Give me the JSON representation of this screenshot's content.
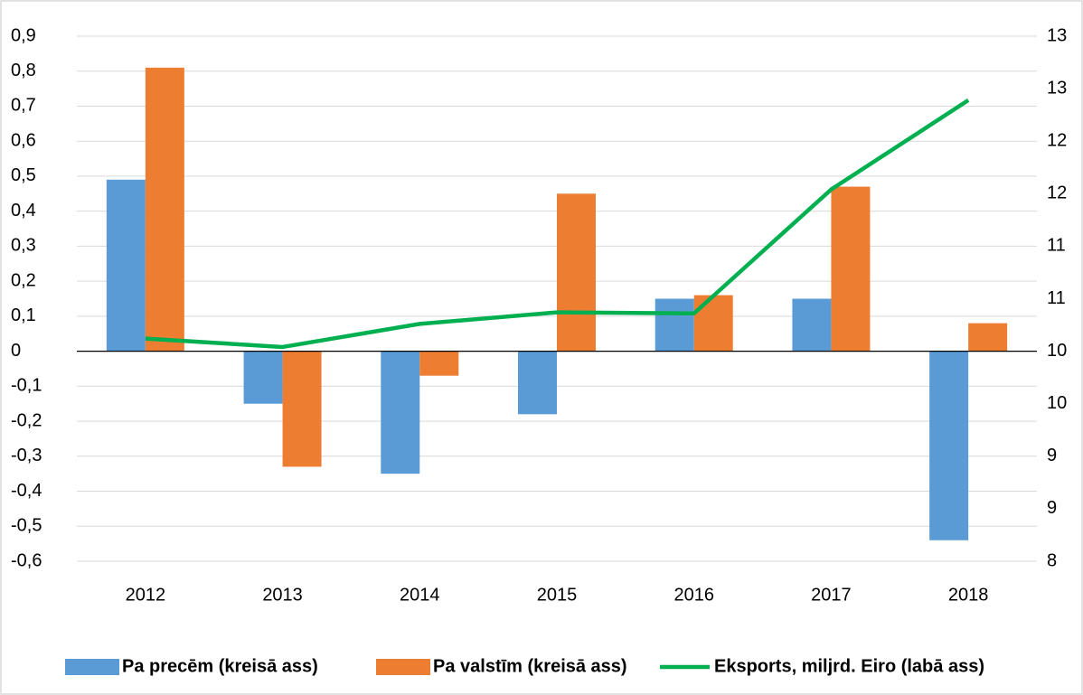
{
  "chart_data": {
    "type": "bar",
    "categories": [
      "2012",
      "2013",
      "2014",
      "2015",
      "2016",
      "2017",
      "2018"
    ],
    "series": [
      {
        "name": "Pa precēm (kreisā ass)",
        "color": "#5b9bd5",
        "values": [
          0.49,
          -0.15,
          -0.35,
          -0.18,
          0.15,
          0.15,
          -0.54
        ]
      },
      {
        "name": "Pa valstīm (kreisā ass)",
        "color": "#ed7d31",
        "values": [
          0.81,
          -0.33,
          -0.07,
          0.45,
          0.16,
          0.47,
          0.08
        ]
      },
      {
        "name": "Eksports, miljrd. Eiro (labā ass)",
        "color": "#00b050",
        "type": "line",
        "axis": "y2",
        "values": [
          10.12,
          10.04,
          10.26,
          10.37,
          10.36,
          11.54,
          12.39
        ]
      }
    ],
    "ylim": [
      -0.6,
      0.9
    ],
    "yticks": [
      {
        "value": 0.9,
        "label": "0,9"
      },
      {
        "value": 0.8,
        "label": "0,8"
      },
      {
        "value": 0.7,
        "label": "0,7"
      },
      {
        "value": 0.6,
        "label": "0,6"
      },
      {
        "value": 0.5,
        "label": "0,5"
      },
      {
        "value": 0.4,
        "label": "0,4"
      },
      {
        "value": 0.3,
        "label": "0,3"
      },
      {
        "value": 0.2,
        "label": "0,2"
      },
      {
        "value": 0.1,
        "label": "0,1"
      },
      0,
      {
        "value": -0.1,
        "label": "-0,1"
      },
      {
        "value": -0.2,
        "label": "-0,2"
      },
      {
        "value": -0.3,
        "label": "-0,3"
      },
      {
        "value": -0.4,
        "label": "-0,4"
      },
      {
        "value": -0.5,
        "label": "-0,5"
      },
      {
        "value": -0.6,
        "label": "-0,6"
      }
    ],
    "y2lim": [
      8,
      13
    ],
    "y2ticks": [
      {
        "value": 13,
        "label": "13"
      },
      {
        "value": 12.5,
        "label": "13"
      },
      {
        "value": 12,
        "label": "12"
      },
      {
        "value": 11.5,
        "label": "12"
      },
      {
        "value": 11,
        "label": "11"
      },
      {
        "value": 10.5,
        "label": "11"
      },
      {
        "value": 10,
        "label": "10"
      },
      {
        "value": 9.5,
        "label": "10"
      },
      {
        "value": 9,
        "label": "9"
      },
      {
        "value": 8.5,
        "label": "9"
      },
      {
        "value": 8,
        "label": "8"
      }
    ],
    "grid": true,
    "legend": "bottom"
  }
}
